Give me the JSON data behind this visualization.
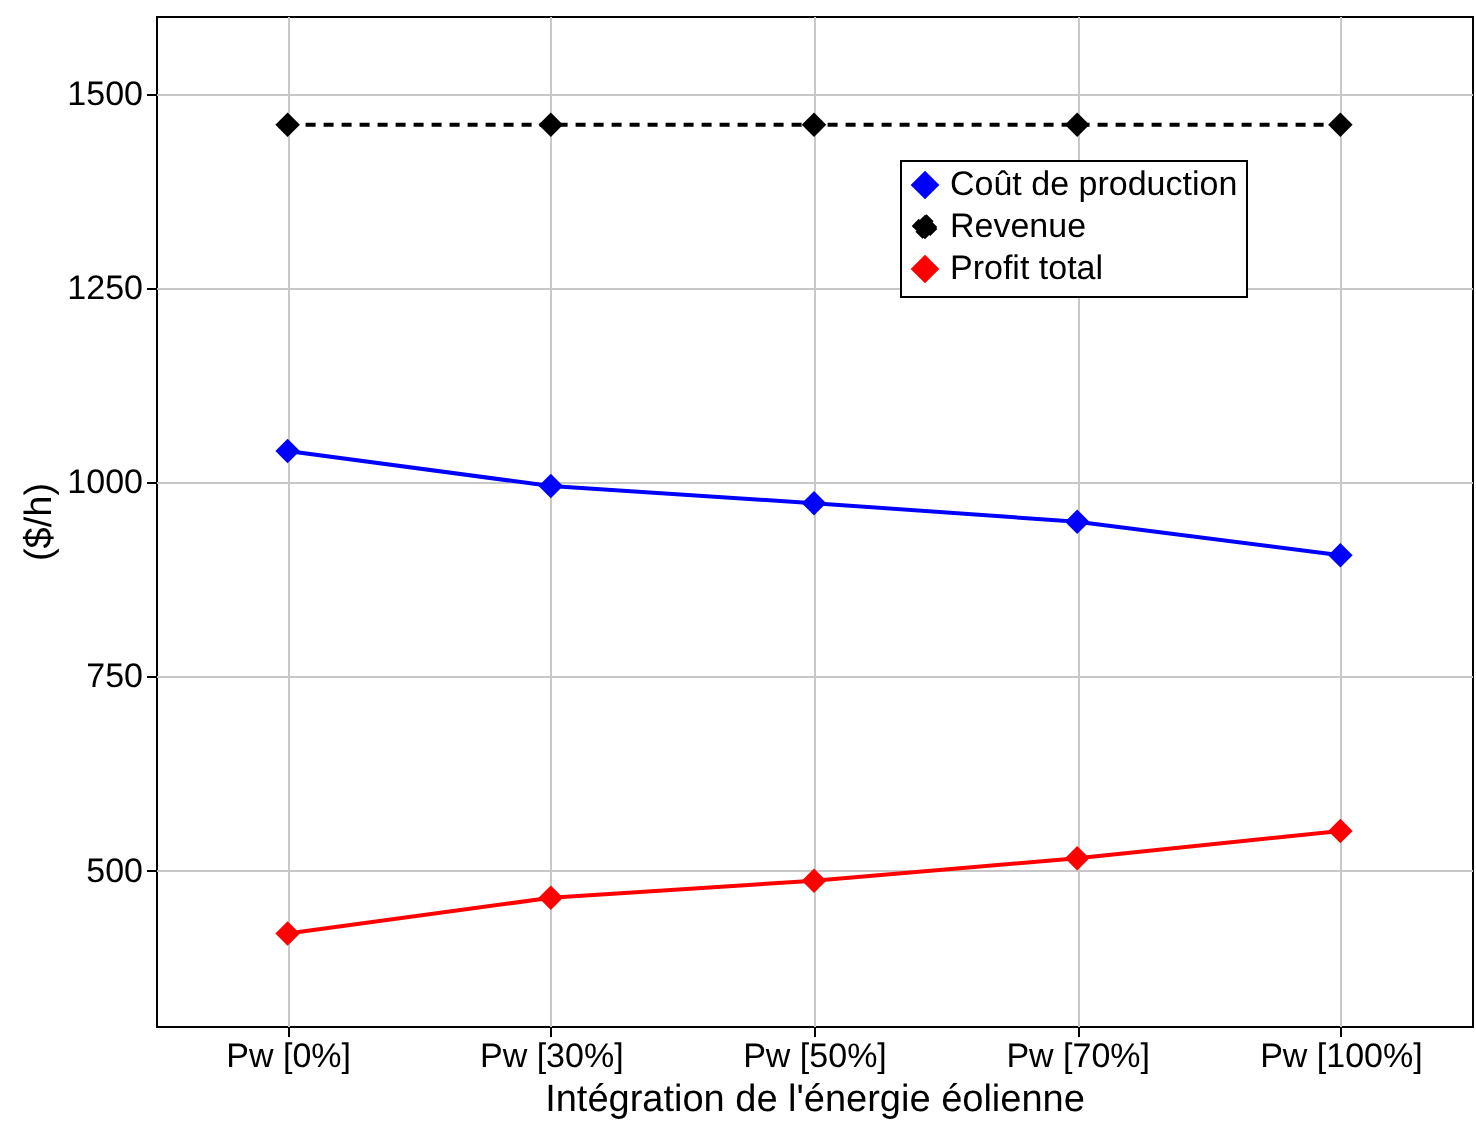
{
  "chart_data": {
    "type": "line",
    "xlabel": "Intégration de l'énergie éolienne",
    "ylabel": "($/h)",
    "categories": [
      "Pw [0%]",
      "Pw [30%]",
      "Pw [50%]",
      "Pw [70%]",
      "Pw [100%]"
    ],
    "series": [
      {
        "name": "Coût de production",
        "color": "#0000ff",
        "values": [
          1040,
          995,
          973,
          949,
          906
        ]
      },
      {
        "name": "Revenue",
        "color": "#000000",
        "values": [
          1460,
          1460,
          1460,
          1460,
          1460
        ],
        "line_style": "dashed"
      },
      {
        "name": "Profit total",
        "color": "#ff0000",
        "values": [
          419,
          465,
          487,
          516,
          551
        ]
      }
    ],
    "ylim": [
      300,
      1600
    ],
    "yticks": [
      500,
      750,
      1000,
      1250,
      1500
    ],
    "grid": true,
    "legend": "top right",
    "marker": "diamond",
    "line_style": "solid"
  }
}
